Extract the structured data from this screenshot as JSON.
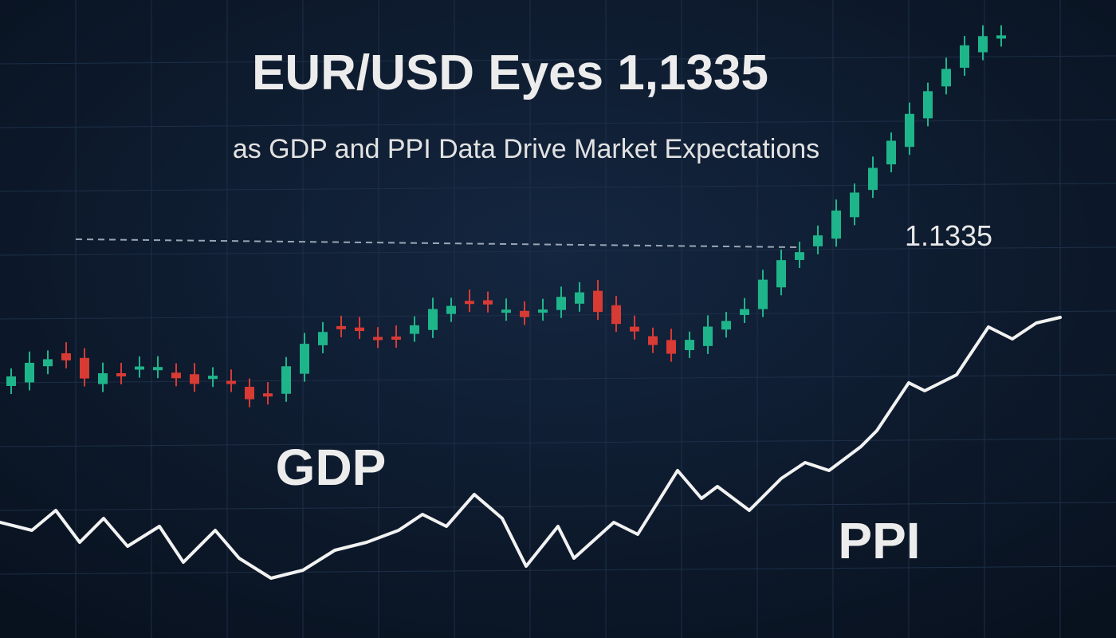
{
  "header": {
    "title": "EUR/USD Eyes 1,1335",
    "subtitle": "as GDP and PPI Data Drive Market Expectations"
  },
  "annotations": {
    "level": "1.1335",
    "gdp": "GDP",
    "ppi": "PPI"
  }
}
